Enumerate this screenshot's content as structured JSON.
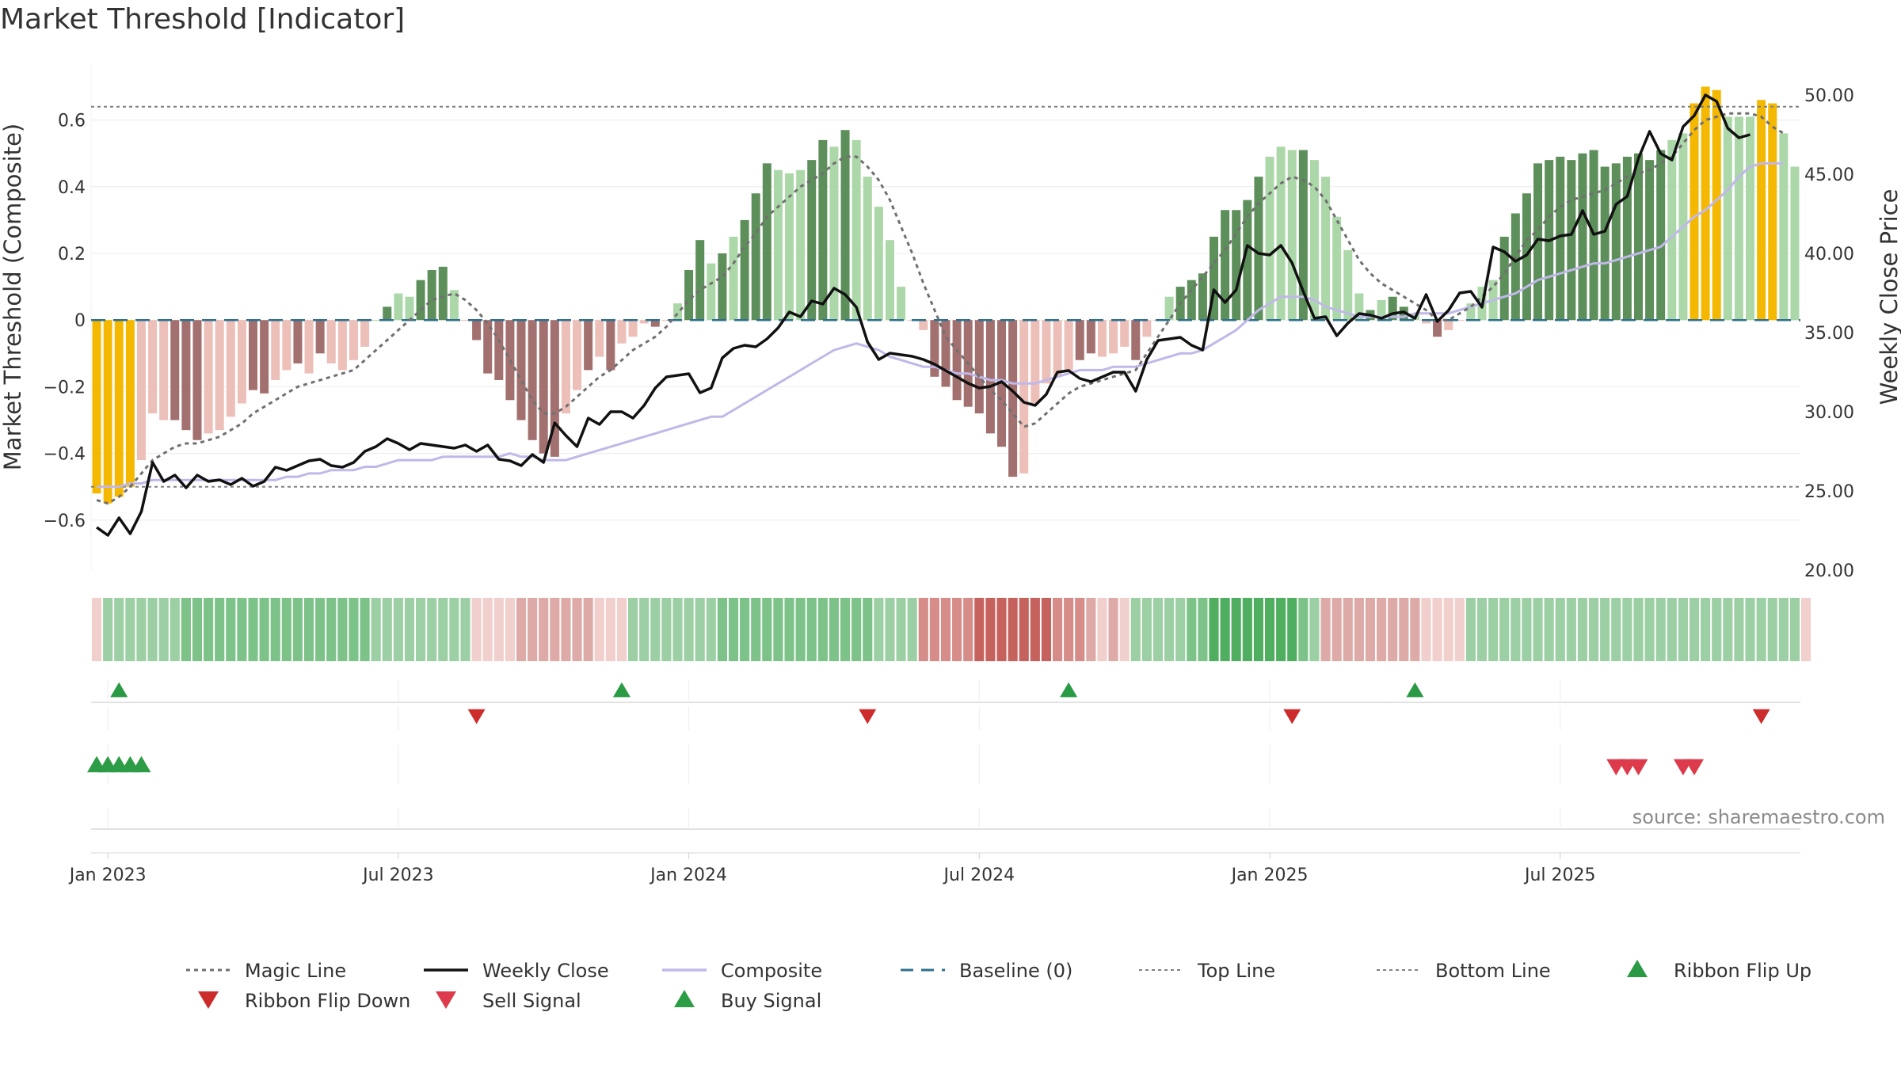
{
  "title": "Market Threshold [Indicator]",
  "source": "source: sharemaestro.com",
  "colors": {
    "magic": "#707070",
    "close": "#111111",
    "composite": "#c0b8e8",
    "baseline": "#2e6f8e",
    "refline": "#808080",
    "extreme": "#f5b800",
    "bull_strong": "#5d8f5a",
    "bull_weak": "#acd8a9",
    "bear_strong": "#a37070",
    "bear_weak": "#ecbfb8",
    "flip_up": "#2a9a45",
    "flip_down": "#cc2c2c",
    "sell": "#dd3b4b",
    "buy": "#2d9c46"
  },
  "chart_data": {
    "type": "bar",
    "ylabel_left": "Market Threshold (Composite)",
    "ylabel_right": "Weekly Close Price",
    "ylim_left": [
      -0.75,
      0.77
    ],
    "ylim_right": [
      20,
      52
    ],
    "yticks_left": [
      "0.6",
      "0.4",
      "0.2",
      "0",
      "−0.2",
      "−0.4",
      "−0.6"
    ],
    "yticks_right": [
      "50.00",
      "45.00",
      "40.00",
      "35.00",
      "30.00",
      "25.00",
      "20.00"
    ],
    "xticks": [
      "Jan 2023",
      "Jul 2023",
      "Jan 2024",
      "Jul 2024",
      "Jan 2025",
      "Jul 2025"
    ],
    "top_line": 0.64,
    "bottom_line": -0.5,
    "composite_bars": [
      -0.52,
      -0.55,
      -0.53,
      -0.5,
      -0.42,
      -0.28,
      -0.3,
      -0.3,
      -0.33,
      -0.36,
      -0.34,
      -0.33,
      -0.29,
      -0.25,
      -0.21,
      -0.22,
      -0.18,
      -0.15,
      -0.13,
      -0.16,
      -0.1,
      -0.13,
      -0.15,
      -0.12,
      -0.08,
      0.0,
      0.04,
      0.08,
      0.07,
      0.12,
      0.15,
      0.16,
      0.09,
      0.0,
      -0.06,
      -0.16,
      -0.18,
      -0.24,
      -0.3,
      -0.36,
      -0.4,
      -0.41,
      -0.28,
      -0.21,
      -0.15,
      -0.11,
      -0.15,
      -0.07,
      -0.05,
      -0.01,
      -0.02,
      0.0,
      0.05,
      0.15,
      0.24,
      0.17,
      0.2,
      0.25,
      0.3,
      0.38,
      0.47,
      0.45,
      0.44,
      0.45,
      0.48,
      0.54,
      0.52,
      0.57,
      0.54,
      0.43,
      0.34,
      0.24,
      0.1,
      0.0,
      -0.03,
      -0.17,
      -0.2,
      -0.24,
      -0.26,
      -0.28,
      -0.34,
      -0.38,
      -0.47,
      -0.46,
      -0.25,
      -0.19,
      -0.17,
      -0.15,
      -0.12,
      -0.1,
      -0.11,
      -0.1,
      -0.08,
      -0.12,
      -0.05,
      0.0,
      0.07,
      0.1,
      0.12,
      0.14,
      0.25,
      0.33,
      0.33,
      0.36,
      0.43,
      0.49,
      0.52,
      0.51,
      0.51,
      0.48,
      0.43,
      0.31,
      0.21,
      0.08,
      0.03,
      0.06,
      0.07,
      0.04,
      0.02,
      -0.01,
      -0.05,
      -0.03,
      0.0,
      0.05,
      0.1,
      0.12,
      0.25,
      0.32,
      0.38,
      0.47,
      0.48,
      0.49,
      0.48,
      0.5,
      0.51,
      0.46,
      0.47,
      0.49,
      0.5,
      0.48,
      0.51,
      0.54,
      0.56,
      0.65,
      0.7,
      0.69,
      0.61,
      0.61,
      0.61,
      0.66,
      0.65,
      0.56,
      0.46
    ],
    "bar_state": [
      3,
      3,
      3,
      3,
      4,
      4,
      4,
      5,
      5,
      5,
      4,
      4,
      4,
      4,
      5,
      5,
      4,
      4,
      5,
      4,
      5,
      4,
      4,
      4,
      4,
      2,
      1,
      2,
      2,
      1,
      1,
      1,
      2,
      4,
      5,
      5,
      5,
      5,
      5,
      5,
      5,
      5,
      4,
      4,
      5,
      4,
      5,
      4,
      4,
      4,
      5,
      4,
      2,
      1,
      1,
      2,
      1,
      2,
      1,
      1,
      1,
      2,
      2,
      2,
      1,
      1,
      2,
      1,
      2,
      2,
      2,
      2,
      2,
      4,
      4,
      5,
      5,
      5,
      5,
      5,
      5,
      5,
      5,
      4,
      4,
      4,
      4,
      4,
      5,
      5,
      4,
      4,
      4,
      5,
      4,
      4,
      2,
      1,
      1,
      1,
      1,
      1,
      1,
      1,
      1,
      2,
      2,
      2,
      1,
      2,
      2,
      2,
      2,
      2,
      1,
      2,
      1,
      1,
      2,
      4,
      5,
      4,
      4,
      2,
      2,
      2,
      1,
      1,
      1,
      1,
      1,
      1,
      1,
      1,
      1,
      1,
      1,
      1,
      1,
      1,
      1,
      2,
      2,
      3,
      3,
      3,
      2,
      2,
      2,
      3,
      3,
      2,
      2
    ],
    "magic_line": [
      -0.54,
      -0.55,
      -0.53,
      -0.5,
      -0.46,
      -0.42,
      -0.4,
      -0.38,
      -0.37,
      -0.37,
      -0.36,
      -0.35,
      -0.33,
      -0.31,
      -0.28,
      -0.26,
      -0.24,
      -0.22,
      -0.2,
      -0.19,
      -0.18,
      -0.17,
      -0.16,
      -0.15,
      -0.12,
      -0.09,
      -0.06,
      -0.03,
      0.0,
      0.03,
      0.06,
      0.07,
      0.08,
      0.06,
      0.03,
      -0.01,
      -0.06,
      -0.12,
      -0.18,
      -0.24,
      -0.28,
      -0.28,
      -0.26,
      -0.23,
      -0.2,
      -0.17,
      -0.15,
      -0.12,
      -0.09,
      -0.07,
      -0.05,
      -0.02,
      0.02,
      0.06,
      0.09,
      0.11,
      0.13,
      0.17,
      0.22,
      0.26,
      0.31,
      0.34,
      0.37,
      0.4,
      0.42,
      0.44,
      0.47,
      0.49,
      0.49,
      0.46,
      0.42,
      0.36,
      0.28,
      0.2,
      0.11,
      0.03,
      -0.05,
      -0.09,
      -0.13,
      -0.17,
      -0.21,
      -0.24,
      -0.28,
      -0.32,
      -0.31,
      -0.28,
      -0.25,
      -0.22,
      -0.2,
      -0.19,
      -0.18,
      -0.17,
      -0.16,
      -0.15,
      -0.1,
      -0.05,
      0.0,
      0.05,
      0.09,
      0.13,
      0.17,
      0.21,
      0.26,
      0.31,
      0.35,
      0.38,
      0.41,
      0.43,
      0.42,
      0.4,
      0.36,
      0.3,
      0.24,
      0.18,
      0.14,
      0.11,
      0.09,
      0.07,
      0.05,
      0.03,
      0.0,
      0.0,
      0.02,
      0.04,
      0.07,
      0.1,
      0.14,
      0.19,
      0.24,
      0.27,
      0.31,
      0.34,
      0.36,
      0.37,
      0.38,
      0.39,
      0.41,
      0.43,
      0.44,
      0.45,
      0.47,
      0.49,
      0.53,
      0.57,
      0.6,
      0.61,
      0.62,
      0.62,
      0.62,
      0.61,
      0.58,
      0.56
    ],
    "composite_line": [
      -0.5,
      -0.5,
      -0.5,
      -0.49,
      -0.49,
      -0.48,
      -0.48,
      -0.48,
      -0.48,
      -0.48,
      -0.48,
      -0.48,
      -0.48,
      -0.48,
      -0.48,
      -0.48,
      -0.48,
      -0.47,
      -0.47,
      -0.46,
      -0.46,
      -0.45,
      -0.45,
      -0.45,
      -0.44,
      -0.44,
      -0.43,
      -0.42,
      -0.42,
      -0.42,
      -0.42,
      -0.41,
      -0.41,
      -0.41,
      -0.41,
      -0.41,
      -0.41,
      -0.4,
      -0.41,
      -0.41,
      -0.42,
      -0.42,
      -0.42,
      -0.41,
      -0.4,
      -0.39,
      -0.38,
      -0.37,
      -0.36,
      -0.35,
      -0.34,
      -0.33,
      -0.32,
      -0.31,
      -0.3,
      -0.29,
      -0.29,
      -0.27,
      -0.25,
      -0.23,
      -0.21,
      -0.19,
      -0.17,
      -0.15,
      -0.13,
      -0.11,
      -0.09,
      -0.08,
      -0.07,
      -0.08,
      -0.09,
      -0.11,
      -0.12,
      -0.13,
      -0.14,
      -0.14,
      -0.15,
      -0.16,
      -0.16,
      -0.17,
      -0.18,
      -0.18,
      -0.19,
      -0.19,
      -0.19,
      -0.18,
      -0.17,
      -0.16,
      -0.15,
      -0.15,
      -0.15,
      -0.14,
      -0.14,
      -0.14,
      -0.13,
      -0.12,
      -0.11,
      -0.1,
      -0.1,
      -0.09,
      -0.07,
      -0.05,
      -0.03,
      0.0,
      0.03,
      0.05,
      0.07,
      0.07,
      0.07,
      0.06,
      0.04,
      0.03,
      0.02,
      0.01,
      0.01,
      0.01,
      0.01,
      0.01,
      0.02,
      0.02,
      0.02,
      0.02,
      0.03,
      0.04,
      0.05,
      0.06,
      0.07,
      0.08,
      0.1,
      0.12,
      0.13,
      0.14,
      0.15,
      0.16,
      0.17,
      0.17,
      0.18,
      0.19,
      0.2,
      0.21,
      0.22,
      0.25,
      0.28,
      0.31,
      0.33,
      0.36,
      0.39,
      0.43,
      0.46,
      0.47,
      0.47,
      0.47
    ],
    "weekly_close": [
      22.7,
      22.2,
      23.3,
      22.3,
      23.7,
      26.8,
      25.6,
      26.0,
      25.2,
      26.0,
      25.6,
      25.7,
      25.4,
      25.8,
      25.3,
      25.6,
      26.5,
      26.3,
      26.6,
      26.9,
      27.0,
      26.6,
      26.5,
      26.8,
      27.5,
      27.8,
      28.3,
      28.0,
      27.6,
      28.0,
      27.9,
      27.8,
      27.7,
      27.9,
      27.5,
      27.9,
      27.0,
      26.9,
      26.6,
      27.3,
      26.8,
      29.3,
      28.5,
      27.8,
      29.6,
      29.2,
      30.0,
      30.0,
      29.6,
      30.4,
      31.5,
      32.2,
      32.3,
      32.4,
      31.2,
      31.5,
      33.4,
      34.0,
      34.2,
      34.1,
      34.6,
      35.3,
      36.3,
      36.0,
      37.0,
      36.8,
      37.8,
      37.4,
      36.6,
      34.4,
      33.3,
      33.7,
      33.6,
      33.5,
      33.3,
      33.0,
      32.6,
      32.2,
      31.8,
      31.5,
      31.6,
      31.9,
      31.3,
      30.6,
      30.4,
      31.1,
      32.5,
      32.6,
      32.1,
      31.9,
      32.2,
      32.5,
      32.5,
      31.3,
      33.3,
      34.5,
      34.6,
      34.7,
      34.2,
      33.9,
      37.7,
      36.9,
      37.7,
      40.5,
      40.0,
      39.9,
      40.5,
      39.4,
      37.6,
      35.9,
      36.0,
      34.8,
      35.6,
      36.2,
      36.1,
      35.9,
      36.2,
      36.3,
      35.9,
      37.4,
      35.7,
      36.4,
      37.5,
      37.6,
      36.6,
      40.4,
      40.1,
      39.5,
      39.9,
      40.9,
      40.8,
      41.1,
      41.2,
      42.7,
      41.2,
      41.4,
      43.1,
      43.6,
      46.0,
      47.7,
      46.3,
      45.9,
      48.0,
      48.7,
      50.0,
      49.6,
      47.9,
      47.3,
      47.5
    ],
    "ribbon_state": [
      4,
      3,
      3,
      3,
      3,
      3,
      3,
      3,
      2,
      2,
      2,
      2,
      2,
      2,
      2,
      2,
      2,
      2,
      2,
      2,
      2,
      2,
      2,
      2,
      2,
      3,
      3,
      3,
      3,
      3,
      3,
      3,
      3,
      3,
      4,
      4,
      4,
      4,
      5,
      5,
      5,
      5,
      5,
      5,
      5,
      4,
      4,
      4,
      3,
      3,
      3,
      3,
      3,
      3,
      3,
      3,
      2,
      2,
      2,
      2,
      2,
      2,
      2,
      2,
      2,
      2,
      2,
      2,
      2,
      2,
      3,
      3,
      3,
      3,
      6,
      6,
      6,
      6,
      6,
      7,
      7,
      7,
      7,
      7,
      7,
      7,
      6,
      6,
      6,
      5,
      4,
      5,
      4,
      3,
      3,
      3,
      3,
      3,
      2,
      2,
      1,
      1,
      1,
      1,
      1,
      1,
      1,
      1,
      2,
      3,
      5,
      5,
      5,
      5,
      5,
      5,
      5,
      5,
      5,
      4,
      4,
      4,
      4,
      3,
      3,
      3,
      3,
      3,
      3,
      3,
      3,
      3,
      3,
      3,
      3,
      3,
      3,
      3,
      3,
      3,
      3,
      3,
      3,
      3,
      3,
      3,
      3,
      3,
      3,
      3,
      3,
      3,
      3,
      4
    ],
    "ribbon_flip_up": [
      2,
      47,
      87,
      118
    ],
    "ribbon_flip_down": [
      34,
      69,
      107,
      149
    ],
    "buy_signal_weeks": [
      0,
      1,
      2,
      3,
      4
    ],
    "sell_signal_weeks": [
      136,
      137,
      138,
      142,
      143
    ],
    "xtick_weeks": [
      1,
      27,
      53,
      79,
      105,
      131
    ],
    "legend": [
      "Magic Line",
      "Weekly Close",
      "Composite",
      "Baseline (0)",
      "Top Line",
      "Bottom Line",
      "Ribbon Flip Up",
      "Ribbon Flip Down",
      "Sell Signal",
      "Buy Signal"
    ]
  }
}
